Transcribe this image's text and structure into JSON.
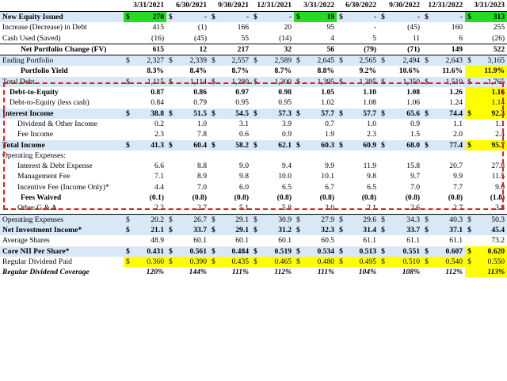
{
  "header": {
    "columns": [
      "3/31/2021",
      "6/30/2021",
      "9/30/2021",
      "12/31/2021",
      "3/31/2022",
      "6/30/2022",
      "9/30/2022",
      "12/31/2022",
      "3/31/2023"
    ]
  },
  "rows": [
    {
      "label": "New Equity Issued",
      "dollar": "$",
      "values": [
        "270",
        "-",
        "-",
        "-",
        "19",
        "-",
        "-",
        "-",
        "313"
      ]
    },
    {
      "label": "Increase (Decrease) in Debt",
      "dollar": "",
      "values": [
        "415",
        "(1)",
        "166",
        "20",
        "95",
        "-",
        "(45)",
        "160",
        "255"
      ]
    },
    {
      "label": "Cash Used (Saved)",
      "dollar": "",
      "values": [
        "(16)",
        "(45)",
        "55",
        "(14)",
        "4",
        "5",
        "11",
        "6",
        "(26)"
      ]
    },
    {
      "label": "Net Portfolio Change (FV)",
      "dollar": "",
      "values": [
        "615",
        "12",
        "217",
        "32",
        "56",
        "(79)",
        "(71)",
        "149",
        "522"
      ]
    },
    {
      "label": "Ending Portfolio",
      "dollar": "$",
      "values": [
        "2,327",
        "2,339",
        "2,557",
        "2,589",
        "2,645",
        "2,565",
        "2,494",
        "2,643",
        "3,165"
      ]
    },
    {
      "label": "Portfolio Yield",
      "dollar": "",
      "values": [
        "8.3%",
        "8.4%",
        "8.7%",
        "8.7%",
        "8.8%",
        "9.2%",
        "10.6%",
        "11.6%",
        "11.9%"
      ]
    },
    {
      "label": "Total Debt",
      "dollar": "$",
      "values": [
        "1,115",
        "1,114",
        "1,280",
        "1,300",
        "1,395",
        "1,395",
        "1,350",
        "1,510",
        "1,765"
      ]
    },
    {
      "label": "Debt-to-Equity",
      "dollar": "",
      "values": [
        "0.87",
        "0.86",
        "0.97",
        "0.98",
        "1.05",
        "1.10",
        "1.08",
        "1.26",
        "1.16"
      ]
    },
    {
      "label": "Debt-to-Equity (less cash)",
      "dollar": "",
      "values": [
        "0.84",
        "0.79",
        "0.95",
        "0.95",
        "1.02",
        "1.08",
        "1.06",
        "1.24",
        "1.14"
      ]
    },
    {
      "label": "Interest Income",
      "dollar": "$",
      "values": [
        "38.8",
        "51.5",
        "54.5",
        "57.3",
        "57.7",
        "57.7",
        "65.6",
        "74.4",
        "92.3"
      ]
    },
    {
      "label": "Dividend & Other Income",
      "dollar": "",
      "values": [
        "0.2",
        "1.0",
        "3.1",
        "3.9",
        "0.7",
        "1.0",
        "0.9",
        "1.1",
        "1.1"
      ]
    },
    {
      "label": "Fee Income",
      "dollar": "",
      "values": [
        "2.3",
        "7.8",
        "0.6",
        "0.9",
        "1.9",
        "2.3",
        "1.5",
        "2.0",
        "2.4"
      ]
    },
    {
      "label": "Total Income",
      "dollar": "$",
      "values": [
        "41.3",
        "60.4",
        "58.2",
        "62.1",
        "60.3",
        "60.9",
        "68.0",
        "77.4",
        "95.7"
      ]
    },
    {
      "label": "Operating Expenses:",
      "dollar": "",
      "values": [
        "",
        "",
        "",
        "",
        "",
        "",
        "",
        "",
        ""
      ]
    },
    {
      "label": "Interest & Debt Expense",
      "dollar": "",
      "values": [
        "6.6",
        "8.8",
        "9.0",
        "9.4",
        "9.9",
        "11.9",
        "15.8",
        "20.7",
        "27.8"
      ]
    },
    {
      "label": "Management Fee",
      "dollar": "",
      "values": [
        "7.1",
        "8.9",
        "9.8",
        "10.0",
        "10.1",
        "9.8",
        "9.7",
        "9.9",
        "11.5"
      ]
    },
    {
      "label": "Incentive Fee (Income Only)*",
      "dollar": "",
      "values": [
        "4.4",
        "7.0",
        "6.0",
        "6.5",
        "6.7",
        "6.5",
        "7.0",
        "7.7",
        "9.0"
      ]
    },
    {
      "label": "Fees Waived",
      "dollar": "",
      "values": [
        "(0.1)",
        "(0.8)",
        "(0.8)",
        "(0.8)",
        "(0.8)",
        "(0.8)",
        "(0.8)",
        "(0.8)",
        "(1.8)"
      ]
    },
    {
      "label": "Other G & A",
      "dollar": "",
      "values": [
        "2.2",
        "2.7",
        "5.1",
        "5.8",
        "2.0",
        "2.1",
        "2.6",
        "2.7",
        "3.8"
      ]
    },
    {
      "label": "Operating Expenses",
      "dollar": "$",
      "values": [
        "20.2",
        "26.7",
        "29.1",
        "30.9",
        "27.9",
        "29.6",
        "34.3",
        "40.3",
        "50.3"
      ]
    },
    {
      "label": "Net Investment Income*",
      "dollar": "$",
      "values": [
        "21.1",
        "33.7",
        "29.1",
        "31.2",
        "32.3",
        "31.4",
        "33.7",
        "37.1",
        "45.4"
      ]
    },
    {
      "label": "Average Shares",
      "dollar": "",
      "values": [
        "48.9",
        "60.1",
        "60.1",
        "60.1",
        "60.5",
        "61.1",
        "61.1",
        "61.1",
        "73.2"
      ]
    },
    {
      "label": "Core NII Per Share*",
      "dollar": "$",
      "values": [
        "0.431",
        "0.561",
        "0.484",
        "0.519",
        "0.534",
        "0.513",
        "0.551",
        "0.607",
        "0.620"
      ]
    },
    {
      "label": "Regular Dividend Paid",
      "dollar": "$",
      "values": [
        "0.360",
        "0.390",
        "0.435",
        "0.465",
        "0.480",
        "0.495",
        "0.510",
        "0.540",
        "0.550"
      ]
    },
    {
      "label": "Regular Dividend Coverage",
      "dollar": "",
      "values": [
        "120%",
        "144%",
        "111%",
        "112%",
        "111%",
        "104%",
        "108%",
        "112%",
        "113%"
      ]
    }
  ],
  "colors": {
    "green": "#22dd22",
    "yellow": "#ffff00",
    "blue_band": "#d9e8f7",
    "dashed_border": "#e0201c"
  }
}
